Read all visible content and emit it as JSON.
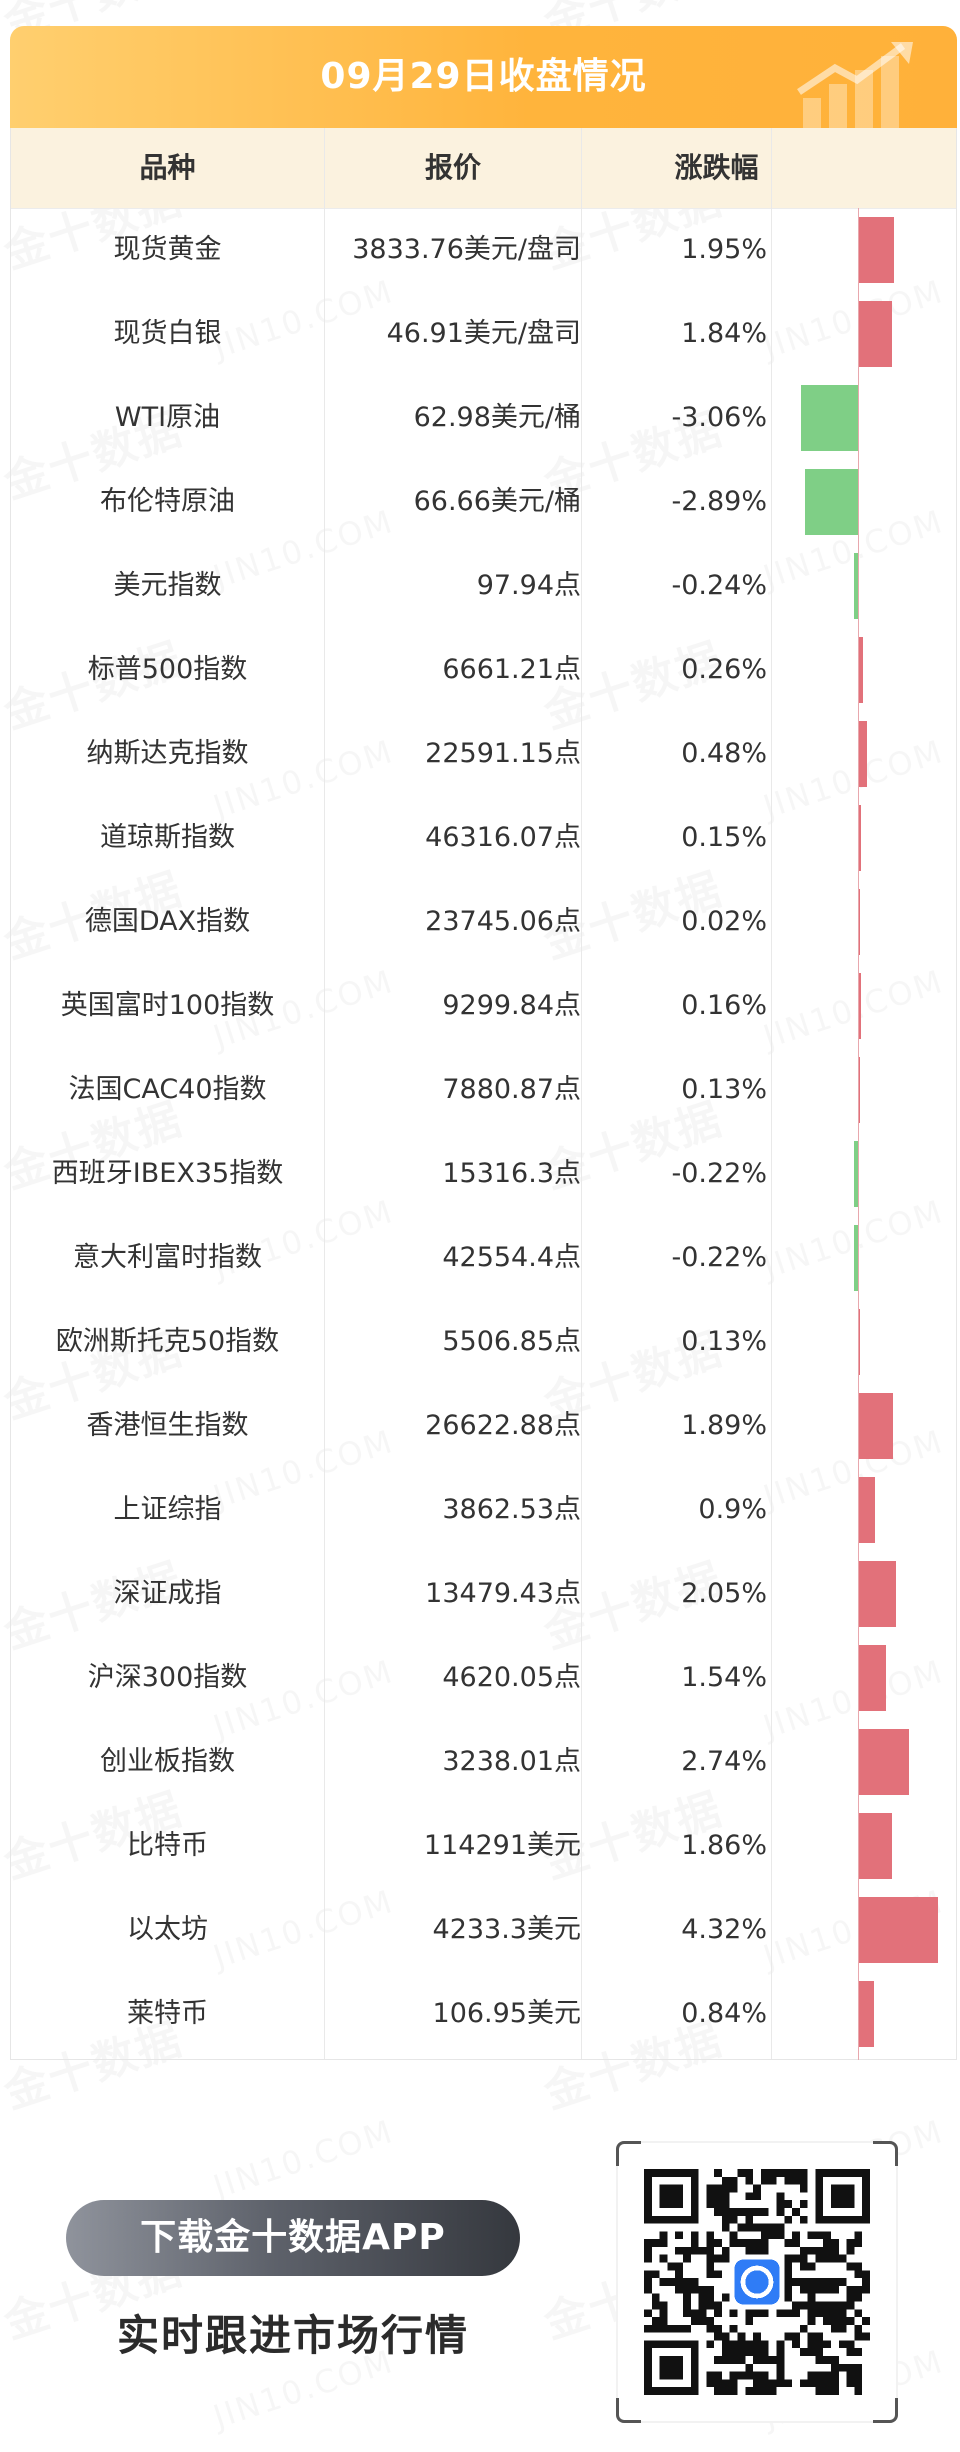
{
  "header": {
    "title": "09月29日收盘情况"
  },
  "table": {
    "columns": [
      "品种",
      "报价",
      "涨跌幅"
    ],
    "rows": [
      {
        "name": "现货黄金",
        "price": "3833.76美元/盘司",
        "change": "1.95%",
        "pct": 1.95
      },
      {
        "name": "现货白银",
        "price": "46.91美元/盘司",
        "change": "1.84%",
        "pct": 1.84
      },
      {
        "name": "WTI原油",
        "price": "62.98美元/桶",
        "change": "-3.06%",
        "pct": -3.06
      },
      {
        "name": "布伦特原油",
        "price": "66.66美元/桶",
        "change": "-2.89%",
        "pct": -2.89
      },
      {
        "name": "美元指数",
        "price": "97.94点",
        "change": "-0.24%",
        "pct": -0.24
      },
      {
        "name": "标普500指数",
        "price": "6661.21点",
        "change": "0.26%",
        "pct": 0.26
      },
      {
        "name": "纳斯达克指数",
        "price": "22591.15点",
        "change": "0.48%",
        "pct": 0.48
      },
      {
        "name": "道琼斯指数",
        "price": "46316.07点",
        "change": "0.15%",
        "pct": 0.15
      },
      {
        "name": "德国DAX指数",
        "price": "23745.06点",
        "change": "0.02%",
        "pct": 0.02
      },
      {
        "name": "英国富时100指数",
        "price": "9299.84点",
        "change": "0.16%",
        "pct": 0.16
      },
      {
        "name": "法国CAC40指数",
        "price": "7880.87点",
        "change": "0.13%",
        "pct": 0.13
      },
      {
        "name": "西班牙IBEX35指数",
        "price": "15316.3点",
        "change": "-0.22%",
        "pct": -0.22
      },
      {
        "name": "意大利富时指数",
        "price": "42554.4点",
        "change": "-0.22%",
        "pct": -0.22
      },
      {
        "name": "欧洲斯托克50指数",
        "price": "5506.85点",
        "change": "0.13%",
        "pct": 0.13
      },
      {
        "name": "香港恒生指数",
        "price": "26622.88点",
        "change": "1.89%",
        "pct": 1.89
      },
      {
        "name": "上证综指",
        "price": "3862.53点",
        "change": "0.9%",
        "pct": 0.9
      },
      {
        "name": "深证成指",
        "price": "13479.43点",
        "change": "2.05%",
        "pct": 2.05
      },
      {
        "name": "沪深300指数",
        "price": "4620.05点",
        "change": "1.54%",
        "pct": 1.54
      },
      {
        "name": "创业板指数",
        "price": "3238.01点",
        "change": "2.74%",
        "pct": 2.74
      },
      {
        "name": "比特币",
        "price": "114291美元",
        "change": "1.86%",
        "pct": 1.86
      },
      {
        "name": "以太坊",
        "price": "4233.3美元",
        "change": "4.32%",
        "pct": 4.32
      },
      {
        "name": "莱特币",
        "price": "106.95美元",
        "change": "0.84%",
        "pct": 0.84
      }
    ]
  },
  "colors": {
    "positive": "#e2717a",
    "negative": "#7fcf86",
    "header": "#ffb43c"
  },
  "watermark": {
    "cn": "金十数据",
    "en": "JIN10.COM"
  },
  "footer": {
    "download_label": "下载金十数据APP",
    "slogan": "实时跟进市场行情"
  },
  "qr": {
    "center_icon": "jin10-app-icon"
  }
}
